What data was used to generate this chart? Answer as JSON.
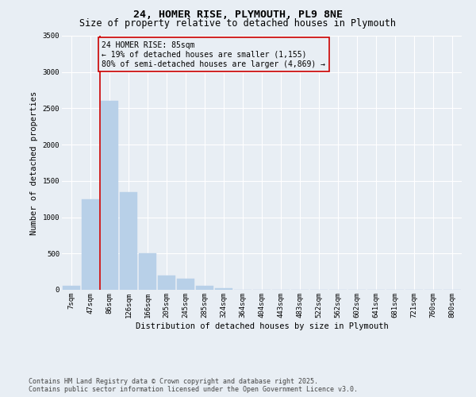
{
  "title": "24, HOMER RISE, PLYMOUTH, PL9 8NE",
  "subtitle": "Size of property relative to detached houses in Plymouth",
  "xlabel": "Distribution of detached houses by size in Plymouth",
  "ylabel": "Number of detached properties",
  "bar_color": "#b8d0e8",
  "bar_edge_color": "#b8d0e8",
  "background_color": "#e8eef4",
  "grid_color": "#ffffff",
  "categories": [
    "7sqm",
    "47sqm",
    "86sqm",
    "126sqm",
    "166sqm",
    "205sqm",
    "245sqm",
    "285sqm",
    "324sqm",
    "364sqm",
    "404sqm",
    "443sqm",
    "483sqm",
    "522sqm",
    "562sqm",
    "602sqm",
    "641sqm",
    "681sqm",
    "721sqm",
    "760sqm",
    "800sqm"
  ],
  "values": [
    50,
    1250,
    2600,
    1350,
    500,
    200,
    150,
    50,
    20,
    5,
    2,
    1,
    0,
    0,
    0,
    0,
    0,
    0,
    0,
    0,
    0
  ],
  "ylim": [
    0,
    3500
  ],
  "yticks": [
    0,
    500,
    1000,
    1500,
    2000,
    2500,
    3000,
    3500
  ],
  "vline_color": "#cc0000",
  "annotation_line1": "24 HOMER RISE: 85sqm",
  "annotation_line2": "← 19% of detached houses are smaller (1,155)",
  "annotation_line3": "80% of semi-detached houses are larger (4,869) →",
  "annotation_box_color": "#cc0000",
  "footnote_line1": "Contains HM Land Registry data © Crown copyright and database right 2025.",
  "footnote_line2": "Contains public sector information licensed under the Open Government Licence v3.0.",
  "title_fontsize": 9.5,
  "subtitle_fontsize": 8.5,
  "label_fontsize": 7.5,
  "tick_fontsize": 6.5,
  "annotation_fontsize": 7,
  "footnote_fontsize": 6
}
